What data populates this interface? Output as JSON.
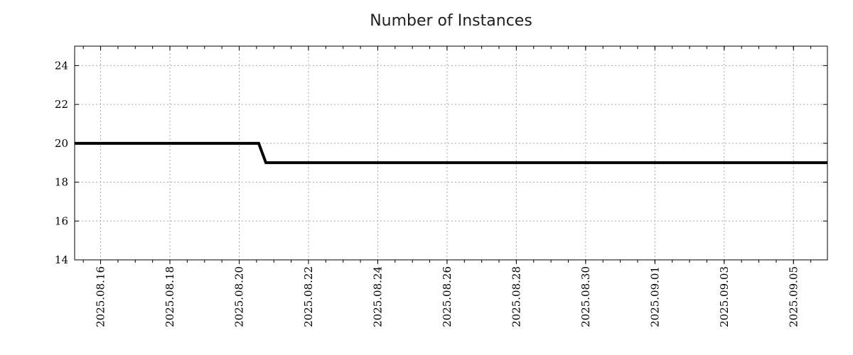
{
  "chart_data": {
    "type": "line",
    "title": "Number of Instances",
    "legend": {
      "show": false
    },
    "x_axis": {
      "type": "time",
      "range_start": "2025-08-15T06:00:00",
      "range_end": "2025-09-05T23:30:00",
      "minor_tick_interval_hours": 12,
      "label_rotation_deg": -90,
      "major_ticks": [
        {
          "date": "2025-08-16T00:00:00",
          "label": "2025.08.16"
        },
        {
          "date": "2025-08-18T00:00:00",
          "label": "2025.08.18"
        },
        {
          "date": "2025-08-20T00:00:00",
          "label": "2025.08.20"
        },
        {
          "date": "2025-08-22T00:00:00",
          "label": "2025.08.22"
        },
        {
          "date": "2025-08-24T00:00:00",
          "label": "2025.08.24"
        },
        {
          "date": "2025-08-26T00:00:00",
          "label": "2025.08.26"
        },
        {
          "date": "2025-08-28T00:00:00",
          "label": "2025.08.28"
        },
        {
          "date": "2025-08-30T00:00:00",
          "label": "2025.08.30"
        },
        {
          "date": "2025-09-01T00:00:00",
          "label": "2025.09.01"
        },
        {
          "date": "2025-09-03T00:00:00",
          "label": "2025.09.03"
        },
        {
          "date": "2025-09-05T00:00:00",
          "label": "2025.09.05"
        }
      ]
    },
    "y_axis": {
      "min": 14,
      "max": 25,
      "major_ticks": [
        14,
        16,
        18,
        20,
        22,
        24
      ]
    },
    "grid": {
      "show": true,
      "color": "#a8a8a8",
      "dash": "2 3"
    },
    "series": [
      {
        "name": "Number of Instances",
        "color": "#000000",
        "line_width": 4,
        "points": [
          {
            "date": "2025-08-15T06:00:00",
            "value": 20
          },
          {
            "date": "2025-08-20T13:30:00",
            "value": 20
          },
          {
            "date": "2025-08-20T18:30:00",
            "value": 19
          },
          {
            "date": "2025-09-05T23:30:00",
            "value": 19
          }
        ]
      }
    ]
  },
  "colors": {
    "background": "#ffffff",
    "axis": "#000000",
    "tick_text": "#000000",
    "title_text": "#1f1f1f"
  }
}
